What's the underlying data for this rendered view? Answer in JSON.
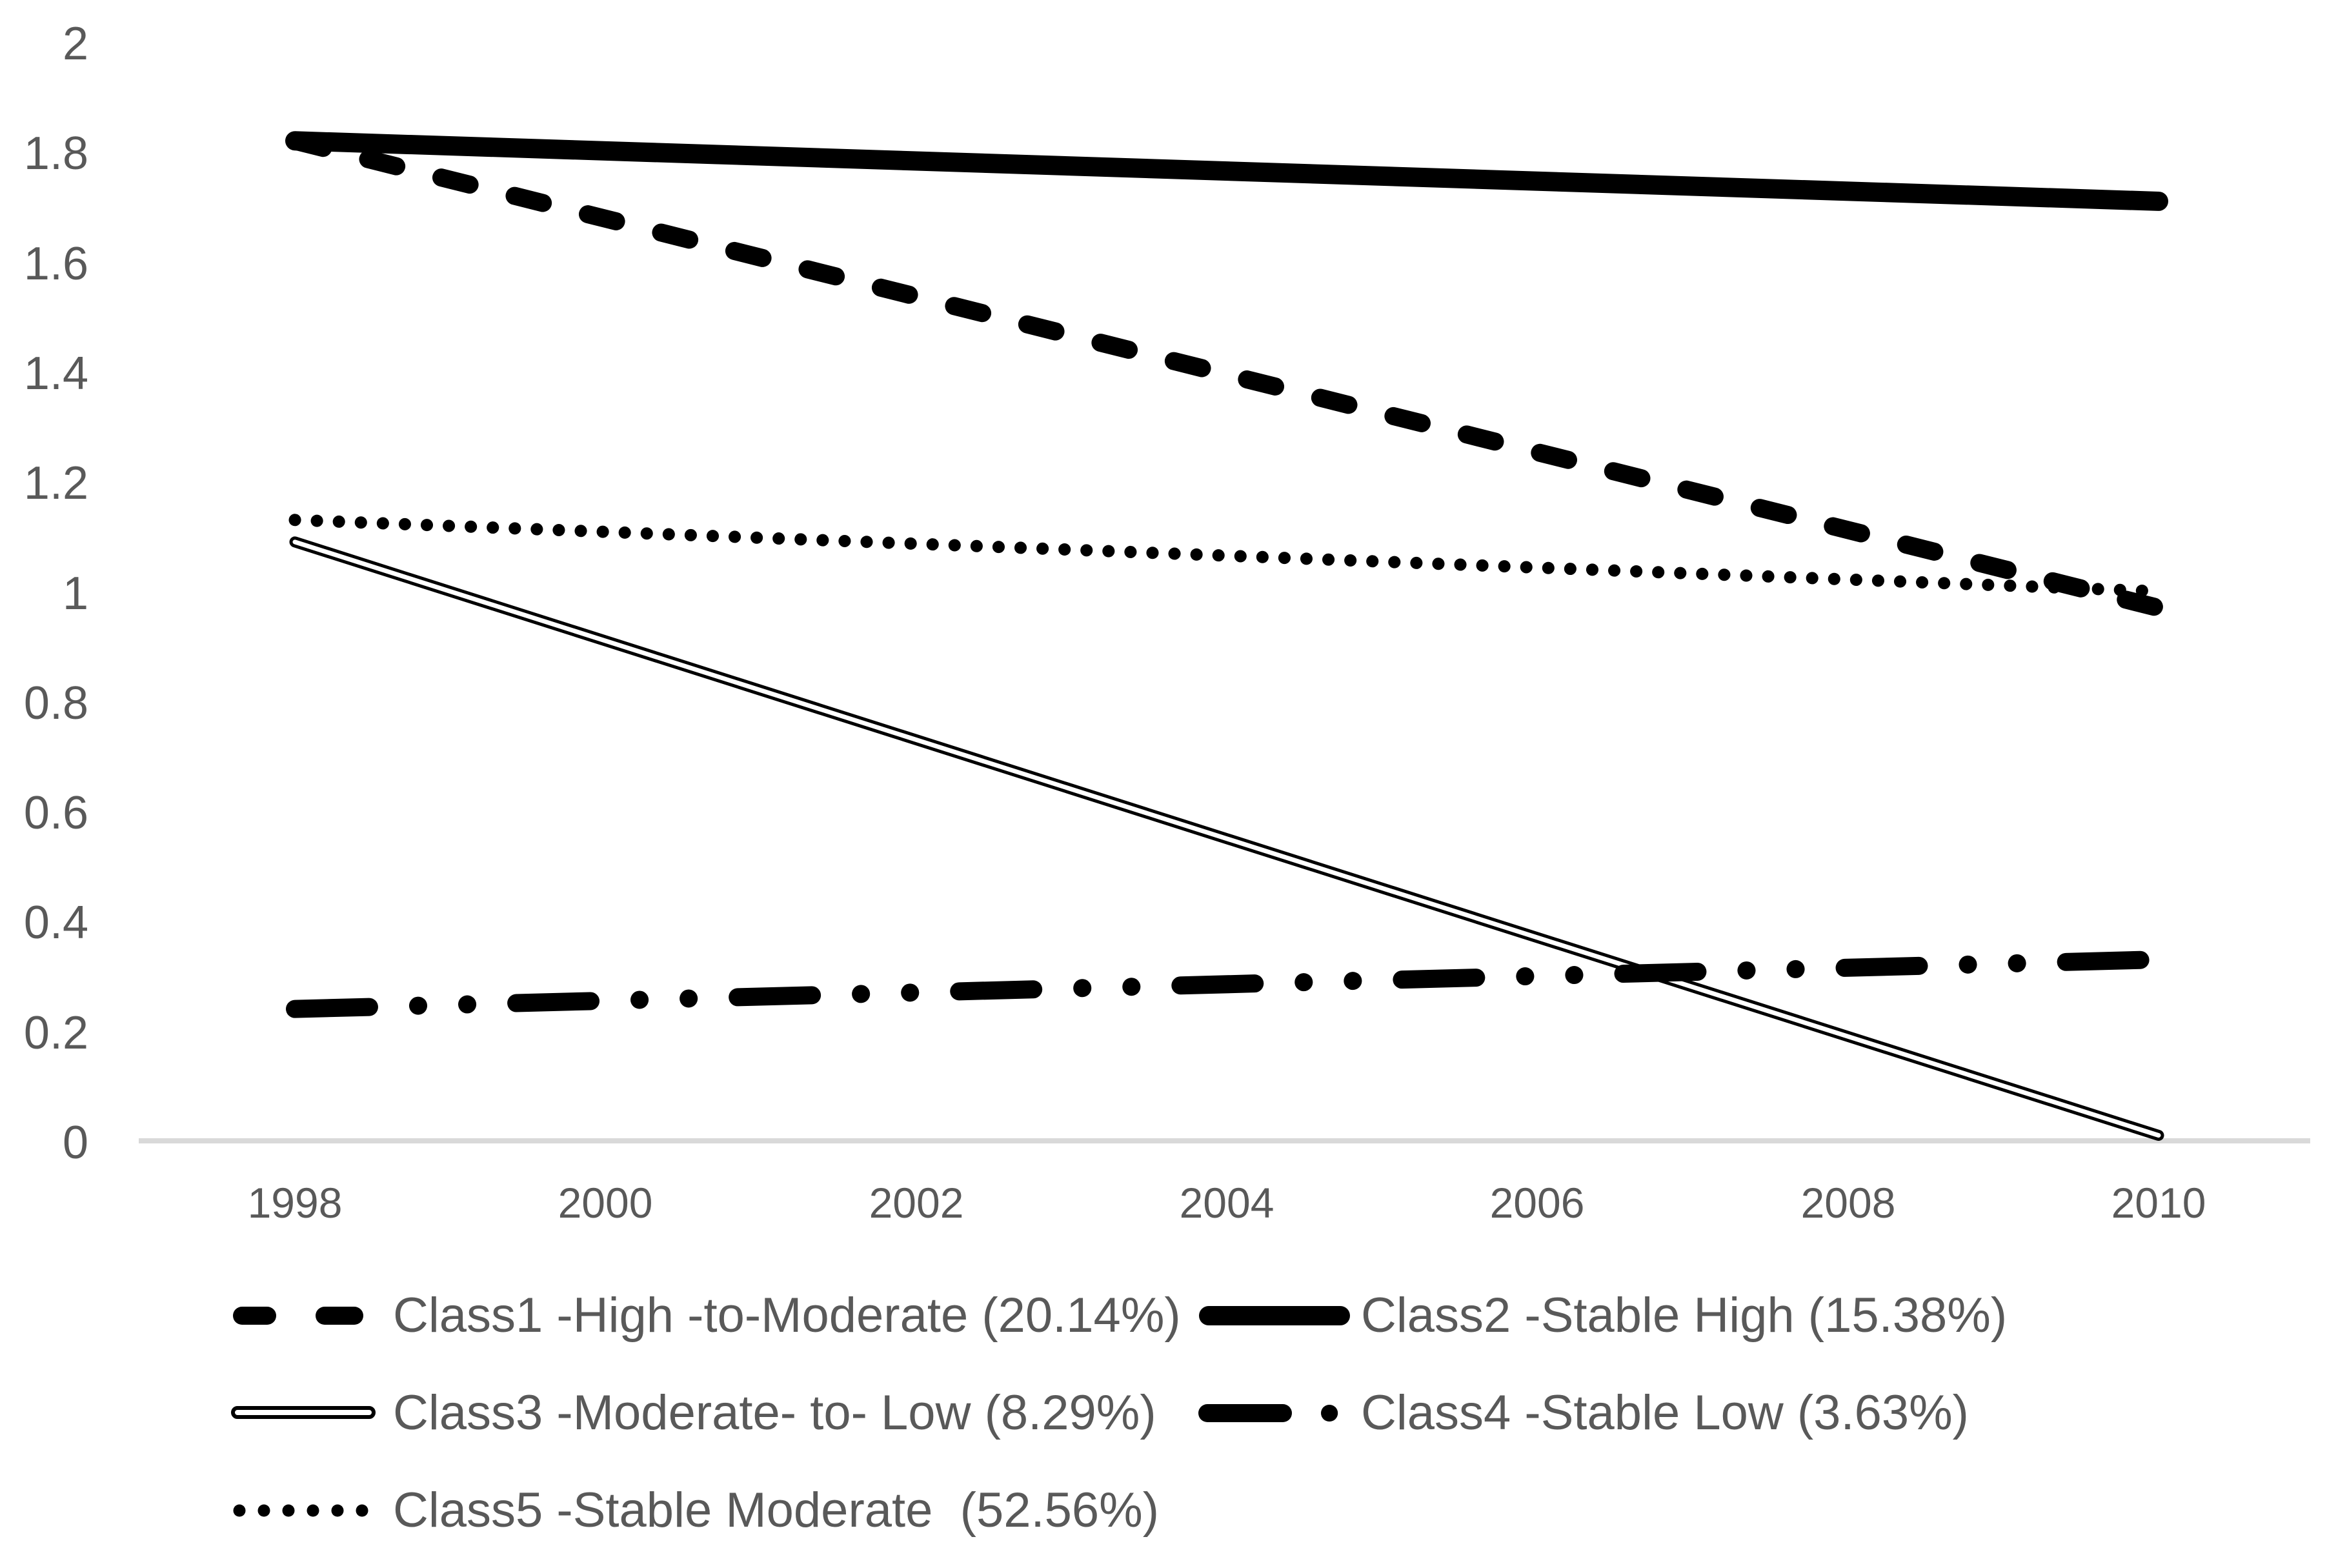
{
  "chart_data": {
    "type": "line",
    "title": "",
    "xlabel": "",
    "ylabel": "",
    "xlim": [
      1998,
      2010
    ],
    "ylim": [
      0,
      2
    ],
    "grid": false,
    "legend_position": "bottom",
    "x_ticks": [
      "1998",
      "2000",
      "2002",
      "2004",
      "2006",
      "2008",
      "2010"
    ],
    "y_ticks": [
      "2",
      "1.8",
      "1.6",
      "1.4",
      "1.2",
      "1",
      "0.8",
      "0.6",
      "0.4",
      "0.2",
      "0"
    ],
    "x": [
      1998,
      2010
    ],
    "series": [
      {
        "name": "Class1 -High -to-Moderate (20.14%)",
        "style": "dashed",
        "x": [
          1998,
          2010
        ],
        "values": [
          1.82,
          0.97
        ]
      },
      {
        "name": "Class2 -Stable High (15.38%)",
        "style": "solid",
        "x": [
          1998,
          2010
        ],
        "values": [
          1.82,
          1.71
        ]
      },
      {
        "name": "Class3 -Moderate- to- Low (8.29%)",
        "style": "double",
        "x": [
          1998,
          2010
        ],
        "values": [
          1.09,
          0.01
        ]
      },
      {
        "name": "Class4 -Stable Low (3.63%)",
        "style": "dash-dot-dot",
        "x": [
          1998,
          2010
        ],
        "values": [
          0.24,
          0.33
        ]
      },
      {
        "name": "Class5 -Stable Moderate  (52.56%)",
        "style": "dotted",
        "x": [
          1998,
          2010
        ],
        "values": [
          1.13,
          1.0
        ]
      }
    ],
    "colors": {
      "line": "#000000",
      "axis_line": "#d9d9d9",
      "tick_text": "#595959",
      "legend_text": "#595959",
      "background": "#ffffff"
    }
  }
}
